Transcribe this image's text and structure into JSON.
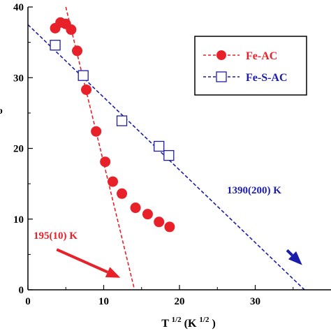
{
  "chart_data": {
    "type": "scatter",
    "xlabel_main": "T",
    "xlabel_sup1": "1/2",
    "xlabel_unit": "(K",
    "xlabel_sup2": "1/2",
    "xlabel_close": ")",
    "ylabel_partial": "υ",
    "xlim": [
      0,
      40
    ],
    "ylim": [
      0,
      40
    ],
    "xticks": [
      0,
      10,
      20,
      30
    ],
    "yticks": [
      0,
      10,
      20,
      30,
      40
    ],
    "series": [
      {
        "name": "Fe-AC",
        "marker": "filled-circle",
        "color": "#e8202a",
        "x": [
          3.6,
          4.3,
          5.0,
          5.7,
          6.5,
          7.7,
          9.0,
          10.2,
          11.2,
          12.4,
          14.2,
          15.8,
          17.3,
          18.7
        ],
        "y": [
          37.0,
          37.8,
          37.6,
          36.8,
          33.8,
          28.3,
          22.4,
          18.1,
          15.3,
          13.6,
          11.6,
          10.7,
          9.6,
          8.9
        ],
        "fit_line": {
          "x": [
            5.0,
            14.0
          ],
          "y": [
            40.0,
            0.3
          ]
        }
      },
      {
        "name": "Fe-S-AC",
        "marker": "open-square",
        "color": "#1c1caa",
        "x": [
          3.6,
          7.3,
          12.4,
          17.3,
          18.6
        ],
        "y": [
          34.6,
          30.3,
          23.9,
          20.3,
          19.0
        ],
        "fit_line": {
          "x": [
            0.0,
            36.5
          ],
          "y": [
            37.5,
            0.0
          ]
        }
      }
    ],
    "legend": {
      "position": "upper-right",
      "entries": [
        "Fe-AC",
        "Fe-S-AC"
      ]
    },
    "annotations": [
      {
        "text": "195(10) K",
        "color": "#e8202a",
        "arrow_from": [
          3.8,
          5.7
        ],
        "arrow_to": [
          12.2,
          1.7
        ]
      },
      {
        "text": "1390(200) K",
        "color": "#1c1caa",
        "arrow_from": [
          34.2,
          5.6
        ],
        "arrow_to": [
          36.2,
          3.5
        ]
      }
    ]
  }
}
